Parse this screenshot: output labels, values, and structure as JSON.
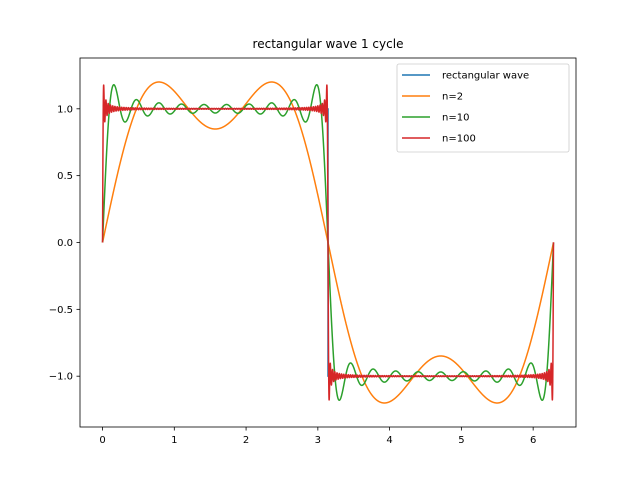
{
  "chart_data": {
    "type": "line",
    "title": "rectangular wave 1 cycle",
    "xlabel": "",
    "ylabel": "",
    "xlim": [
      -0.314,
      6.597
    ],
    "ylim": [
      -1.38,
      1.38
    ],
    "x_ticks": [
      0,
      1,
      2,
      3,
      4,
      5,
      6
    ],
    "x_tick_labels": [
      "0",
      "1",
      "2",
      "3",
      "4",
      "5",
      "6"
    ],
    "y_ticks": [
      1.0,
      0.5,
      0.0,
      -0.5,
      -1.0
    ],
    "y_tick_labels": [
      "1.0",
      "0.5",
      "0.0",
      "−0.5",
      "−1.0"
    ],
    "grid": false,
    "legend_position": "top-right",
    "x_range": [
      0,
      6.2832
    ],
    "series": [
      {
        "name": "rectangular wave",
        "color": "#1f77b4",
        "kind": "square",
        "amplitude": 1
      },
      {
        "name": "n=2",
        "color": "#ff7f0e",
        "kind": "fourier",
        "terms": 2
      },
      {
        "name": "n=10",
        "color": "#2ca02c",
        "kind": "fourier",
        "terms": 10
      },
      {
        "name": "n=100",
        "color": "#d62728",
        "kind": "fourier",
        "terms": 100
      }
    ]
  }
}
